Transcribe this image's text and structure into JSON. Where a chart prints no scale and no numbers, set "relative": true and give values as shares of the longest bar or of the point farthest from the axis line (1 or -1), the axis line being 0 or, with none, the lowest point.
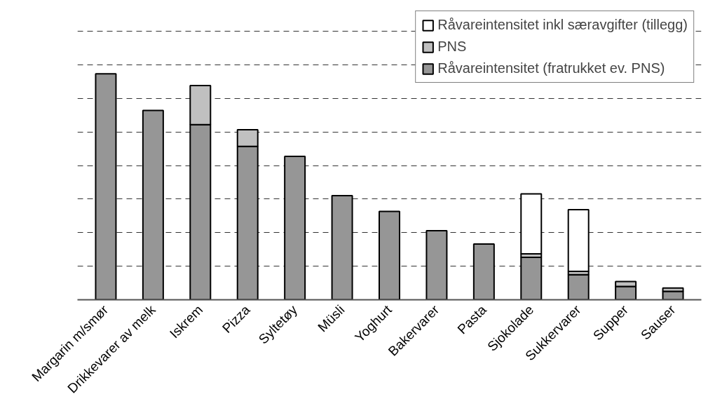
{
  "chart_data": {
    "type": "bar",
    "relative": true,
    "stacked": true,
    "categories": [
      "Margarin m/smør",
      "Drikkevarer av melk",
      "Iskrem",
      "Pizza",
      "Syltetøy",
      "Müsli",
      "Yoghurt",
      "Bakervarer",
      "Pasta",
      "Sjokolade",
      "Sukkervarer",
      "Supper",
      "Sauser"
    ],
    "series": [
      {
        "name": "Råvareintensitet (fratrukket ev. PNS)",
        "color": "#969696",
        "values": [
          1.0,
          0.838,
          0.775,
          0.679,
          0.635,
          0.461,
          0.391,
          0.306,
          0.247,
          0.188,
          0.111,
          0.059,
          0.037
        ]
      },
      {
        "name": "PNS",
        "color": "#c0c0c0",
        "values": [
          null,
          null,
          0.173,
          0.074,
          null,
          null,
          null,
          null,
          null,
          0.015,
          0.015,
          0.022,
          0.015
        ]
      },
      {
        "name": "Råvareintensitet inkl særavgifter (tillegg)",
        "color": "#ffffff",
        "values": [
          null,
          null,
          null,
          null,
          null,
          null,
          null,
          null,
          null,
          0.266,
          0.273,
          null,
          null
        ]
      }
    ],
    "grid": "y",
    "legend": "top right"
  }
}
